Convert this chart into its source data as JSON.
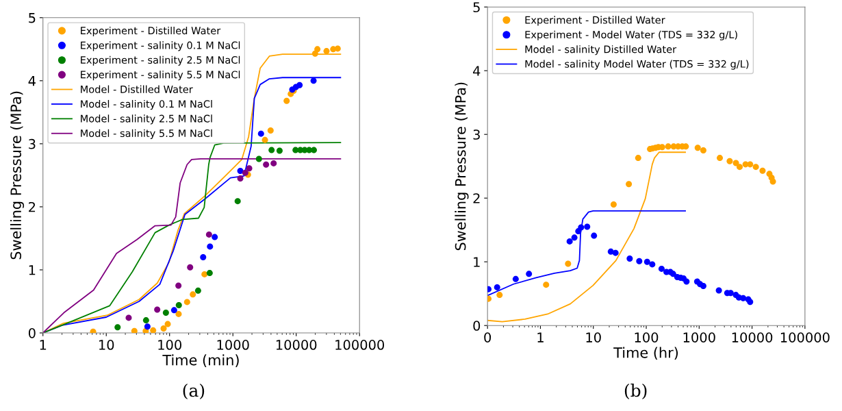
{
  "chart_data": [
    {
      "type": "scatter",
      "xlabel": "Time (min)",
      "ylabel": "Swelling Pressure (MPa)",
      "log": "x",
      "xlim": [
        1,
        100000
      ],
      "ylim": [
        0,
        5
      ],
      "xticks": [
        1,
        10,
        100,
        1000,
        10000,
        100000
      ],
      "yticks": [
        0,
        1,
        2,
        3,
        4,
        5
      ],
      "grid": false,
      "legend": "top left",
      "annotations": [
        "(a)"
      ],
      "series": [
        {
          "name": "Experiment - Distilled Water",
          "marker": "circle",
          "color": "#ffa500",
          "x": [
            6.2,
            27.8,
            42,
            55,
            80.5,
            93.5,
            139,
            189,
            233,
            356,
            1730,
            3210,
            3940,
            7060,
            8200,
            9120,
            19900,
            21600,
            30100,
            38400,
            45200
          ],
          "values": [
            0.02,
            0.03,
            0.03,
            0.04,
            0.07,
            0.14,
            0.3,
            0.49,
            0.61,
            0.93,
            2.51,
            3.06,
            3.21,
            3.68,
            3.79,
            3.84,
            4.43,
            4.5,
            4.47,
            4.5,
            4.51
          ]
        },
        {
          "name": "Experiment - salinity 0.1 M NaCl",
          "marker": "circle",
          "color": "#0000ff",
          "x": [
            44.7,
            118,
            339,
            435,
            517,
            1310,
            2780,
            8670,
            9900,
            11300,
            18800
          ],
          "values": [
            0.1,
            0.36,
            1.2,
            1.37,
            1.52,
            2.57,
            3.16,
            3.86,
            3.9,
            3.93,
            4.0
          ]
        },
        {
          "name": "Experiment - salinity 2.5 M NaCl",
          "marker": "circle",
          "color": "#008000",
          "x": [
            15.1,
            42.5,
            87.5,
            140,
            282,
            430,
            1190,
            2580,
            4080,
            5460,
            9750,
            11600,
            13600,
            16000,
            19000
          ],
          "values": [
            0.09,
            0.2,
            0.32,
            0.44,
            0.67,
            0.95,
            2.09,
            2.76,
            2.9,
            2.89,
            2.9,
            2.9,
            2.9,
            2.9,
            2.9
          ]
        },
        {
          "name": "Experiment - salinity 5.5 M NaCl",
          "marker": "circle",
          "color": "#800080",
          "x": [
            22.6,
            63.8,
            138,
            211,
            420,
            1310,
            1570,
            1810,
            3340,
            4400
          ],
          "values": [
            0.24,
            0.37,
            0.75,
            1.04,
            1.56,
            2.45,
            2.54,
            2.61,
            2.67,
            2.69
          ]
        },
        {
          "name": "Model - Distilled Water",
          "type": "line",
          "marker": "none",
          "color": "#ffa500",
          "x": [
            1,
            2.06,
            10.4,
            33,
            64,
            98,
            135,
            171,
            367,
            915,
            1380,
            1770,
            2180,
            2700,
            3770,
            6100,
            50000
          ],
          "values": [
            0,
            0.15,
            0.28,
            0.53,
            0.79,
            1.12,
            1.62,
            1.89,
            2.18,
            2.57,
            2.75,
            3.11,
            3.72,
            4.2,
            4.39,
            4.42,
            4.42
          ]
        },
        {
          "name": "Model - salinity 0.1 M NaCl",
          "type": "line",
          "marker": "none",
          "color": "#0000ff",
          "x": [
            1,
            2,
            10,
            33,
            70,
            114,
            175,
            367,
            915,
            1500,
            1940,
            2180,
            2700,
            3770,
            6100,
            50000
          ],
          "values": [
            0,
            0.12,
            0.25,
            0.5,
            0.77,
            1.3,
            1.88,
            2.13,
            2.46,
            2.49,
            2.96,
            3.72,
            3.94,
            4.03,
            4.05,
            4.05
          ]
        },
        {
          "name": "Model - salinity 2.5 M NaCl",
          "type": "line",
          "marker": "none",
          "color": "#008000",
          "x": [
            1,
            2,
            11.3,
            25.8,
            59,
            98,
            160,
            286,
            352,
            415,
            435,
            516,
            715,
            50000
          ],
          "values": [
            0,
            0.12,
            0.43,
            0.97,
            1.59,
            1.71,
            1.8,
            1.82,
            1.99,
            2.67,
            2.78,
            2.98,
            3.01,
            3.02
          ]
        },
        {
          "name": "Model - salinity 5.5 M NaCl",
          "type": "line",
          "marker": "none",
          "color": "#800080",
          "x": [
            1,
            2.14,
            6.3,
            14.5,
            30.5,
            59,
            105,
            125,
            147,
            189,
            223,
            310,
            50000
          ],
          "values": [
            0,
            0.32,
            0.68,
            1.26,
            1.48,
            1.7,
            1.71,
            1.84,
            2.38,
            2.67,
            2.75,
            2.76,
            2.76
          ]
        }
      ]
    },
    {
      "type": "scatter",
      "xlabel": "Time (hr)",
      "ylabel": "Swelling Pressure (MPa)",
      "log": "x",
      "xlim": [
        0.1,
        100000
      ],
      "ylim": [
        0,
        5
      ],
      "xticks": [
        {
          "value": 0.1,
          "label": "0"
        },
        1,
        10,
        100,
        1000,
        10000,
        100000
      ],
      "yticks": [
        0,
        1,
        2,
        3,
        4,
        5
      ],
      "grid": false,
      "legend": "top left",
      "annotations": [
        "(b)"
      ],
      "series": [
        {
          "name": "Experiment - Distilled Water",
          "marker": "circle",
          "color": "#ffa500",
          "x": [
            0.104,
            0.169,
            1.28,
            3.33,
            24.2,
            46.9,
            70.4,
            118,
            132,
            150,
            170,
            200,
            260,
            330,
            400,
            480,
            560,
            940,
            1200,
            2460,
            3780,
            4960,
            5830,
            7540,
            9200,
            11800,
            15800,
            21300,
            23400,
            24800
          ],
          "values": [
            0.42,
            0.48,
            0.64,
            0.97,
            1.9,
            2.22,
            2.63,
            2.77,
            2.78,
            2.79,
            2.8,
            2.8,
            2.81,
            2.81,
            2.81,
            2.81,
            2.81,
            2.79,
            2.75,
            2.63,
            2.58,
            2.55,
            2.49,
            2.53,
            2.53,
            2.49,
            2.43,
            2.38,
            2.32,
            2.26
          ]
        },
        {
          "name": "Experiment - Model Water (TDS = 332 g/L)",
          "marker": "circle",
          "color": "#0000ff",
          "x": [
            0.104,
            0.152,
            0.341,
            0.607,
            3.57,
            4.39,
            5.2,
            5.86,
            7.65,
            10.3,
            21.4,
            26.3,
            48.7,
            73.8,
            104,
            130,
            195,
            241,
            286,
            322,
            386,
            448,
            507,
            577,
            917,
            1040,
            1200,
            2360,
            3400,
            3940,
            4940,
            5630,
            6800,
            8500,
            9200
          ],
          "values": [
            0.57,
            0.6,
            0.73,
            0.81,
            1.32,
            1.38,
            1.48,
            1.54,
            1.55,
            1.41,
            1.16,
            1.14,
            1.05,
            1.01,
            1.0,
            0.96,
            0.89,
            0.84,
            0.84,
            0.81,
            0.76,
            0.75,
            0.74,
            0.69,
            0.69,
            0.65,
            0.62,
            0.55,
            0.51,
            0.51,
            0.48,
            0.44,
            0.43,
            0.41,
            0.37
          ]
        },
        {
          "name": "Model - salinity Distilled Water",
          "type": "line",
          "marker": "none",
          "color": "#ffa500",
          "x": [
            0.1,
            0.19,
            0.51,
            1.37,
            3.67,
            9.9,
            26.7,
            58.5,
            96,
            130,
            143,
            175,
            547
          ],
          "values": [
            0.08,
            0.06,
            0.1,
            0.18,
            0.34,
            0.63,
            1.02,
            1.52,
            1.99,
            2.53,
            2.63,
            2.72,
            2.72
          ]
        },
        {
          "name": "Model - salinity Model Water (TDS = 332 g/L)",
          "type": "line",
          "marker": "none",
          "color": "#0000ff",
          "x": [
            0.1,
            0.31,
            0.83,
            1.84,
            3.67,
            4.95,
            5.46,
            5.74,
            6.34,
            8.1,
            9.9,
            547
          ],
          "values": [
            0.47,
            0.65,
            0.75,
            0.82,
            0.86,
            0.9,
            1.02,
            1.45,
            1.67,
            1.78,
            1.8,
            1.8
          ]
        }
      ]
    }
  ]
}
